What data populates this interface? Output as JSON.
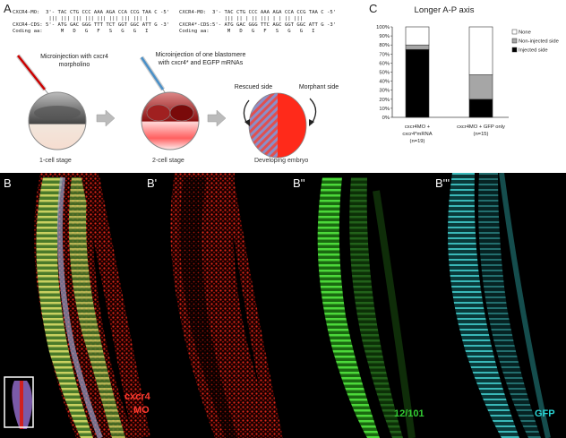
{
  "panel_a": {
    "letter": "A",
    "seq1": {
      "mo_line": "CXCR4-MO:  3'- TAC CTG CCC AAA AGA CCA CCG TAA C -5'",
      "bars": "            ||| ||| ||| ||| ||| ||| ||| ||| |",
      "cds_line": "CXCR4-CDS: 5'- ATG GAC GGG TTT TCT GGT GGC ATT G -3'",
      "coding_line": "Coding aa:      M   D   G   F   S   G   G   I"
    },
    "seq2": {
      "mo_line": "CXCR4-MO:  3'- TAC CTG CCC AAA AGA CCA CCG TAA C -5'",
      "bars": "               ||| || | || ||| | | || |||",
      "cds_line": "CXCR4*-CDS:5'- ATG GAC GGG TTC AGC GGT GGC ATT G -3'",
      "coding_line": "Coding aa:      M   D   G   F   S   G   G   I"
    },
    "step1_label": "Microinjection with cxcr4 morpholino",
    "step2_label": "Microinjection of one blastomere with cxcr4* and EGFP mRNAs",
    "stage1": "1-cell stage",
    "stage2": "2-cell stage",
    "stage3": "Developing embryo",
    "rescued_side": "Rescued side",
    "morphant_side": "Morphant side"
  },
  "panel_c": {
    "letter": "C"
  },
  "chart_data": {
    "type": "bar",
    "stacked": true,
    "title": "Longer A-P axis",
    "categories": [
      "cxcr4MO + cxcr4*mRNA (n=19)",
      "cxcr4MO + GFP only (n=15)"
    ],
    "category_lines": [
      [
        "cxcr4MO +",
        "cxcr4*mRNA",
        "(n=19)"
      ],
      [
        "cxcr4MO + GFP only",
        "(n=15)"
      ]
    ],
    "series": [
      {
        "name": "Injected side",
        "values": [
          75,
          20
        ],
        "color": "#000000"
      },
      {
        "name": "Non-injected side",
        "values": [
          5,
          27
        ],
        "color": "#a6a6a6"
      },
      {
        "name": "None",
        "values": [
          20,
          53
        ],
        "color": "#ffffff"
      }
    ],
    "legend_order": [
      "None",
      "Non-injected side",
      "Injected side"
    ],
    "yticks": [
      "0%",
      "10%",
      "20%",
      "30%",
      "40%",
      "50%",
      "60%",
      "70%",
      "80%",
      "90%",
      "100%"
    ],
    "ylim": [
      0,
      100
    ],
    "legend_position": "right"
  },
  "panel_b": {
    "b_letter": "B",
    "b1_letter": "B'",
    "b2_letter": "B''",
    "b3_letter": "B'''",
    "label_cxcr4": "cxcr4",
    "label_mo": "MO",
    "label_12101": "12/101",
    "label_gfp": "GFP",
    "colors": {
      "red": "#ff3b30",
      "green": "#33cc33",
      "cyan": "#29d4d4"
    }
  }
}
